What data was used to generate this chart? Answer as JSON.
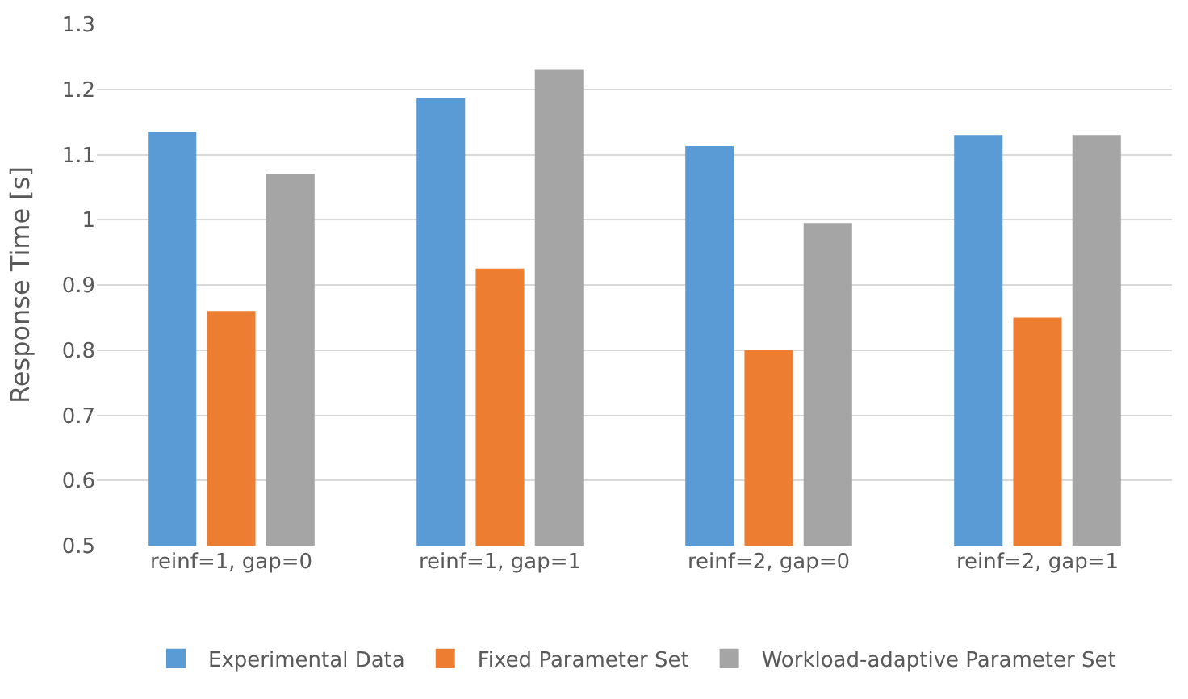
{
  "chart_data": {
    "type": "bar",
    "ylabel": "Response Time [s]",
    "categories": [
      "reinf=1, gap=0",
      "reinf=1, gap=1",
      "reinf=2, gap=0",
      "reinf=2, gap=1"
    ],
    "series": [
      {
        "name": "Experimental Data",
        "color": "#5b9bd5",
        "values": [
          1.135,
          1.187,
          1.113,
          1.13
        ]
      },
      {
        "name": "Fixed Parameter Set",
        "color": "#ed7d31",
        "values": [
          0.86,
          0.925,
          0.8,
          0.85
        ]
      },
      {
        "name": "Workload-adaptive Parameter Set",
        "color": "#a5a5a5",
        "values": [
          1.071,
          1.23,
          0.995,
          1.13
        ]
      }
    ],
    "ylim": [
      0.5,
      1.3
    ],
    "yticks": [
      0.5,
      0.6,
      0.7,
      0.8,
      0.9,
      1,
      1.1,
      1.2,
      1.3
    ],
    "grid": "y",
    "legend": "bottom"
  }
}
